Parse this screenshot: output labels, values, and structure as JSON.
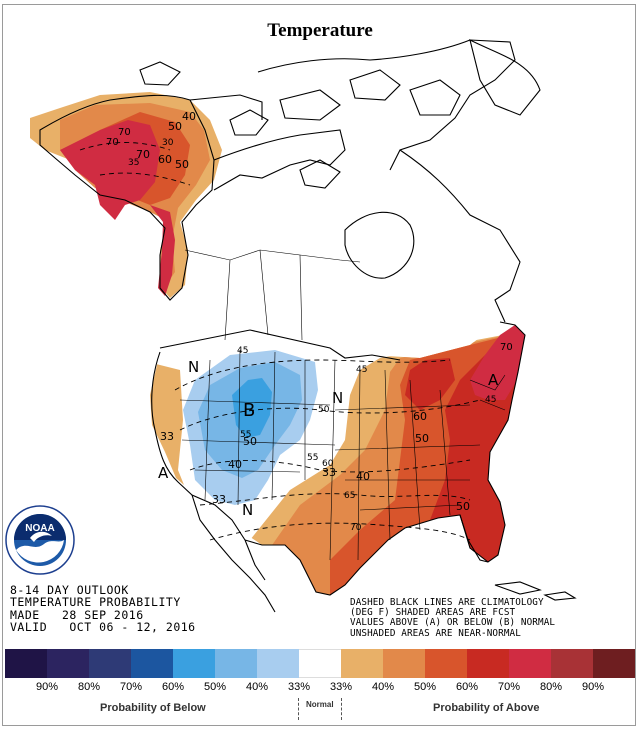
{
  "title": "Temperature",
  "outlook": {
    "line1": "8-14 DAY OUTLOOK",
    "line2": "TEMPERATURE PROBABILITY",
    "line3": "MADE   28 SEP 2016",
    "line4": "VALID   OCT 06 - 12, 2016"
  },
  "legend_note": {
    "line1": "DASHED BLACK LINES ARE CLIMATOLOGY",
    "line2": "(DEG F) SHADED AREAS ARE FCST",
    "line3": "VALUES ABOVE (A) OR BELOW (B) NORMAL",
    "line4": "UNSHADED AREAS ARE NEAR-NORMAL"
  },
  "color_scale": {
    "colors": [
      "#1f1446",
      "#2c2460",
      "#2e3a76",
      "#1c56a0",
      "#3aa0e0",
      "#77b6e6",
      "#a8cdef",
      "#ffffff",
      "#e8b068",
      "#e2894a",
      "#d8552c",
      "#c82a22",
      "#d02c42",
      "#a83236",
      "#6e1e20"
    ],
    "tick_labels": [
      "90%",
      "80%",
      "70%",
      "60%",
      "50%",
      "40%",
      "33%",
      "33%",
      "40%",
      "50%",
      "60%",
      "70%",
      "80%",
      "90%"
    ],
    "below_label": "Probability of Below",
    "normal_label": "Normal",
    "above_label": "Probability of Above"
  },
  "map_labels": {
    "N_west": "N",
    "N_central": "N",
    "N_south": "N",
    "B_center": "B",
    "A_west": "A",
    "A_northeast": "A",
    "alaska": [
      "70",
      "70",
      "35",
      "70",
      "60",
      "50",
      "50",
      "40",
      "30"
    ],
    "west": [
      "33",
      "33",
      "45",
      "55",
      "50",
      "40",
      "50",
      "33"
    ],
    "east": [
      "45",
      "50",
      "60",
      "50",
      "55",
      "60",
      "65",
      "40",
      "70",
      "70",
      "45"
    ]
  },
  "noaa_logo": {
    "text": "NOAA",
    "ring_text": "NATIONAL OCEANIC AND ATMOSPHERIC ADMINISTRATION · U.S. DEPARTMENT OF COMMERCE"
  }
}
